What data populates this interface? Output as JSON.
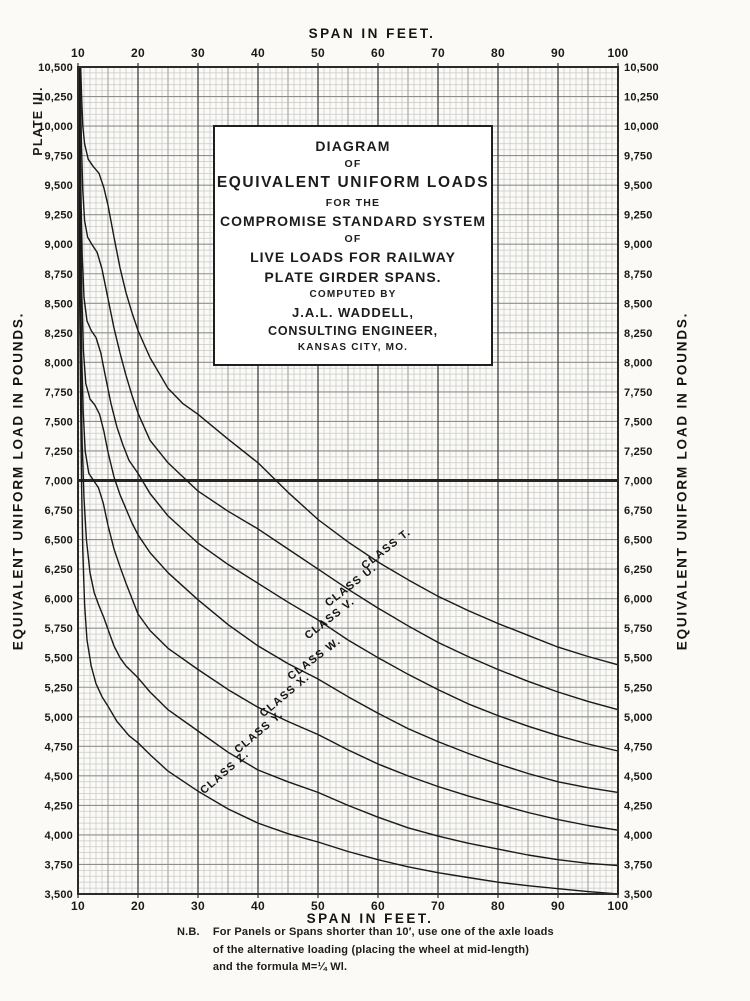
{
  "page": {
    "plate_label": "PLATE III."
  },
  "axes": {
    "top_title": "SPAN IN FEET.",
    "bottom_title": "SPAN IN FEET.",
    "left_title": "EQUIVALENT UNIFORM LOAD IN POUNDS.",
    "right_title": "EQUIVALENT UNIFORM LOAD IN POUNDS.",
    "x_tick_labels": [
      "10",
      "20",
      "30",
      "40",
      "50",
      "60",
      "70",
      "80",
      "90",
      "100"
    ],
    "y_tick_labels": [
      "10,500",
      "10,250",
      "10,000",
      "9,750",
      "9,500",
      "9,250",
      "9,000",
      "8,750",
      "8,500",
      "8,250",
      "8,000",
      "7,750",
      "7,500",
      "7,250",
      "7,000",
      "6,750",
      "6,500",
      "6,250",
      "6,000",
      "5,750",
      "5,500",
      "5,250",
      "5,000",
      "4,750",
      "4,500",
      "4,250",
      "4,000",
      "3,750",
      "3,500"
    ]
  },
  "title_block": {
    "lines": [
      "DIAGRAM",
      "OF",
      "EQUIVALENT UNIFORM LOADS",
      "FOR THE",
      "COMPROMISE STANDARD SYSTEM",
      "OF",
      "LIVE LOADS FOR RAILWAY",
      "PLATE GIRDER SPANS.",
      "COMPUTED BY",
      "J.A.L. WADDELL,",
      "CONSULTING ENGINEER,",
      "KANSAS CITY, MO."
    ]
  },
  "note": {
    "label": "N.B.",
    "lines": [
      "For Panels or Spans shorter than 10′, use one of the axle loads",
      "of the alternative loading  (placing the wheel at mid-length)",
      "and the formula M=¼ Wl."
    ]
  },
  "colors": {
    "ink": "#191919",
    "frame": "#2b2b2b",
    "grid_minor": "#c9c9c9",
    "grid_mid": "#9a9a9a",
    "grid_major": "#4d4d4d",
    "grid_row": "#8f8f8f",
    "emphasis_line": "#262626",
    "title_box_bg": "#ffffff"
  },
  "chart_data": {
    "type": "line",
    "title": "Diagram of Equivalent Uniform Loads for the Compromise Standard System of Live Loads for Railway Plate Girder Spans",
    "xlabel": "SPAN IN FEET.",
    "ylabel": "EQUIVALENT UNIFORM LOAD IN POUNDS.",
    "xlim": [
      10,
      100
    ],
    "ylim": [
      3500,
      10500
    ],
    "x_major_step": 10,
    "x_mid_step": 5,
    "x_minor_step": 1,
    "y_major_step": 250,
    "y_minor_step": 50,
    "emphasized_y_value": 7000,
    "grid": true,
    "legend_position": "on-curve",
    "series": [
      {
        "name": "CLASS T.",
        "label": {
          "span": 61.7,
          "load": 6400,
          "angle": -38
        },
        "points": [
          [
            10.45,
            10500
          ],
          [
            10.6,
            10250
          ],
          [
            10.8,
            10000
          ],
          [
            11.1,
            9850
          ],
          [
            11.7,
            9720
          ],
          [
            12.5,
            9660
          ],
          [
            13.5,
            9600
          ],
          [
            14.3,
            9480
          ],
          [
            15,
            9330
          ],
          [
            16,
            9060
          ],
          [
            17,
            8800
          ],
          [
            18,
            8590
          ],
          [
            19,
            8420
          ],
          [
            20,
            8270
          ],
          [
            22,
            8040
          ],
          [
            25,
            7780
          ],
          [
            27.5,
            7650
          ],
          [
            30,
            7560
          ],
          [
            35,
            7350
          ],
          [
            40,
            7150
          ],
          [
            45,
            6900
          ],
          [
            50,
            6670
          ],
          [
            55,
            6480
          ],
          [
            60,
            6310
          ],
          [
            65,
            6160
          ],
          [
            70,
            6020
          ],
          [
            75,
            5900
          ],
          [
            80,
            5790
          ],
          [
            85,
            5690
          ],
          [
            90,
            5590
          ],
          [
            95,
            5510
          ],
          [
            100,
            5440
          ]
        ]
      },
      {
        "name": "CLASS U.",
        "label": {
          "span": 55.8,
          "load": 6090,
          "angle": -38
        },
        "points": [
          [
            10.3,
            10500
          ],
          [
            10.45,
            10150
          ],
          [
            10.6,
            9800
          ],
          [
            10.8,
            9450
          ],
          [
            11.1,
            9200
          ],
          [
            11.6,
            9060
          ],
          [
            12.3,
            9000
          ],
          [
            13.2,
            8930
          ],
          [
            14,
            8790
          ],
          [
            14.8,
            8590
          ],
          [
            16,
            8290
          ],
          [
            17,
            8080
          ],
          [
            18,
            7890
          ],
          [
            19,
            7720
          ],
          [
            20,
            7570
          ],
          [
            22,
            7340
          ],
          [
            25,
            7150
          ],
          [
            30,
            6910
          ],
          [
            35,
            6740
          ],
          [
            40,
            6590
          ],
          [
            45,
            6420
          ],
          [
            50,
            6250
          ],
          [
            55,
            6080
          ],
          [
            60,
            5920
          ],
          [
            65,
            5770
          ],
          [
            70,
            5630
          ],
          [
            75,
            5510
          ],
          [
            80,
            5400
          ],
          [
            85,
            5300
          ],
          [
            90,
            5210
          ],
          [
            95,
            5130
          ],
          [
            100,
            5060
          ]
        ]
      },
      {
        "name": "CLASS V.",
        "label": {
          "span": 52.3,
          "load": 5810,
          "angle": -38
        },
        "points": [
          [
            10.2,
            10500
          ],
          [
            10.35,
            9950
          ],
          [
            10.5,
            9400
          ],
          [
            10.7,
            8900
          ],
          [
            11,
            8550
          ],
          [
            11.5,
            8350
          ],
          [
            12.2,
            8270
          ],
          [
            13,
            8210
          ],
          [
            13.8,
            8080
          ],
          [
            14.5,
            7900
          ],
          [
            15.5,
            7650
          ],
          [
            16.5,
            7450
          ],
          [
            17.5,
            7300
          ],
          [
            18.5,
            7170
          ],
          [
            20,
            7060
          ],
          [
            22,
            6890
          ],
          [
            25,
            6700
          ],
          [
            30,
            6470
          ],
          [
            35,
            6290
          ],
          [
            40,
            6130
          ],
          [
            45,
            5970
          ],
          [
            50,
            5820
          ],
          [
            55,
            5650
          ],
          [
            60,
            5500
          ],
          [
            65,
            5360
          ],
          [
            70,
            5230
          ],
          [
            75,
            5110
          ],
          [
            80,
            5010
          ],
          [
            85,
            4920
          ],
          [
            90,
            4840
          ],
          [
            95,
            4770
          ],
          [
            100,
            4710
          ]
        ]
      },
      {
        "name": "CLASS W.",
        "label": {
          "span": 49.7,
          "load": 5470,
          "angle": -37
        },
        "points": [
          [
            10.15,
            10480
          ],
          [
            10.3,
            9750
          ],
          [
            10.45,
            9100
          ],
          [
            10.65,
            8550
          ],
          [
            10.9,
            8100
          ],
          [
            11.3,
            7820
          ],
          [
            12,
            7690
          ],
          [
            12.8,
            7640
          ],
          [
            13.6,
            7560
          ],
          [
            14.3,
            7420
          ],
          [
            15,
            7240
          ],
          [
            16,
            7030
          ],
          [
            17,
            6880
          ],
          [
            18,
            6760
          ],
          [
            19,
            6640
          ],
          [
            20,
            6540
          ],
          [
            22,
            6390
          ],
          [
            25,
            6220
          ],
          [
            30,
            5990
          ],
          [
            35,
            5780
          ],
          [
            40,
            5600
          ],
          [
            45,
            5450
          ],
          [
            50,
            5320
          ],
          [
            55,
            5170
          ],
          [
            60,
            5030
          ],
          [
            65,
            4900
          ],
          [
            70,
            4790
          ],
          [
            75,
            4690
          ],
          [
            80,
            4600
          ],
          [
            85,
            4520
          ],
          [
            90,
            4450
          ],
          [
            95,
            4400
          ],
          [
            100,
            4360
          ]
        ]
      },
      {
        "name": "CLASS X.",
        "label": {
          "span": 44.8,
          "load": 5160,
          "angle": -40
        },
        "points": [
          [
            10.1,
            10450
          ],
          [
            10.25,
            9600
          ],
          [
            10.4,
            8800
          ],
          [
            10.6,
            8100
          ],
          [
            10.85,
            7600
          ],
          [
            11.2,
            7250
          ],
          [
            11.8,
            7060
          ],
          [
            12.6,
            7000
          ],
          [
            13.4,
            6940
          ],
          [
            14.2,
            6810
          ],
          [
            15,
            6620
          ],
          [
            16,
            6420
          ],
          [
            17,
            6270
          ],
          [
            18,
            6130
          ],
          [
            19,
            6000
          ],
          [
            20,
            5870
          ],
          [
            22,
            5730
          ],
          [
            25,
            5580
          ],
          [
            30,
            5400
          ],
          [
            35,
            5230
          ],
          [
            40,
            5080
          ],
          [
            45,
            4960
          ],
          [
            50,
            4850
          ],
          [
            55,
            4720
          ],
          [
            60,
            4600
          ],
          [
            65,
            4500
          ],
          [
            70,
            4410
          ],
          [
            75,
            4330
          ],
          [
            80,
            4260
          ],
          [
            85,
            4190
          ],
          [
            90,
            4130
          ],
          [
            95,
            4080
          ],
          [
            100,
            4040
          ]
        ]
      },
      {
        "name": "CLASS Y.",
        "label": {
          "span": 40.5,
          "load": 4850,
          "angle": -40
        },
        "points": [
          [
            10.05,
            10400
          ],
          [
            10.2,
            9450
          ],
          [
            10.35,
            8600
          ],
          [
            10.5,
            7900
          ],
          [
            10.7,
            7300
          ],
          [
            11,
            6850
          ],
          [
            11.4,
            6500
          ],
          [
            12,
            6220
          ],
          [
            12.7,
            6050
          ],
          [
            13.5,
            5940
          ],
          [
            14.3,
            5840
          ],
          [
            15,
            5740
          ],
          [
            16,
            5600
          ],
          [
            17,
            5500
          ],
          [
            18,
            5430
          ],
          [
            19,
            5380
          ],
          [
            20,
            5330
          ],
          [
            22,
            5210
          ],
          [
            25,
            5060
          ],
          [
            30,
            4880
          ],
          [
            35,
            4700
          ],
          [
            40,
            4550
          ],
          [
            45,
            4450
          ],
          [
            50,
            4360
          ],
          [
            55,
            4250
          ],
          [
            60,
            4150
          ],
          [
            65,
            4060
          ],
          [
            70,
            3990
          ],
          [
            75,
            3930
          ],
          [
            80,
            3880
          ],
          [
            85,
            3830
          ],
          [
            90,
            3790
          ],
          [
            95,
            3760
          ],
          [
            100,
            3740
          ]
        ]
      },
      {
        "name": "CLASS Z.",
        "label": {
          "span": 34.8,
          "load": 4510,
          "angle": -41
        },
        "points": [
          [
            10,
            10350
          ],
          [
            10.15,
            9350
          ],
          [
            10.3,
            8400
          ],
          [
            10.45,
            7600
          ],
          [
            10.6,
            6950
          ],
          [
            10.8,
            6400
          ],
          [
            11.1,
            5950
          ],
          [
            11.5,
            5650
          ],
          [
            12.2,
            5430
          ],
          [
            13,
            5280
          ],
          [
            14,
            5170
          ],
          [
            15,
            5090
          ],
          [
            15.8,
            5020
          ],
          [
            16.5,
            4960
          ],
          [
            17.5,
            4900
          ],
          [
            18.5,
            4840
          ],
          [
            20,
            4780
          ],
          [
            22,
            4680
          ],
          [
            25,
            4540
          ],
          [
            30,
            4370
          ],
          [
            35,
            4220
          ],
          [
            40,
            4100
          ],
          [
            45,
            4010
          ],
          [
            50,
            3940
          ],
          [
            55,
            3860
          ],
          [
            60,
            3790
          ],
          [
            65,
            3730
          ],
          [
            70,
            3680
          ],
          [
            75,
            3640
          ],
          [
            80,
            3600
          ],
          [
            85,
            3570
          ],
          [
            90,
            3545
          ],
          [
            95,
            3520
          ],
          [
            100,
            3500
          ]
        ]
      }
    ]
  }
}
